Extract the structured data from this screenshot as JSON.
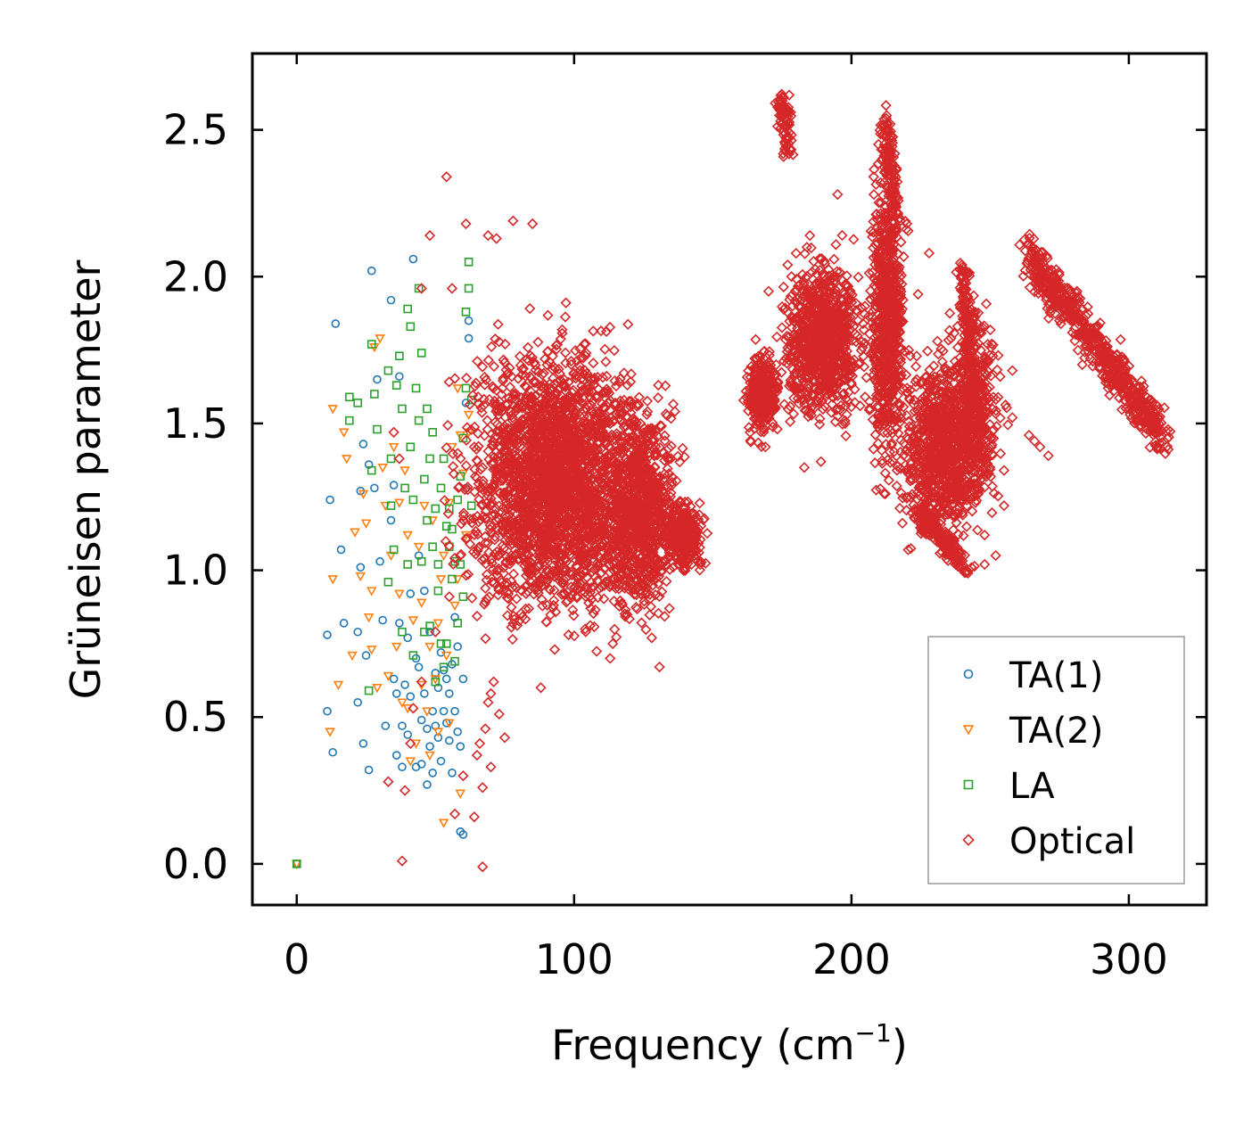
{
  "chart_data": {
    "type": "scatter",
    "title": "",
    "xlabel": "Frequency (cm",
    "xlabel_sup": "−1",
    "xlabel_close": ")",
    "ylabel": "Grüneisen parameter",
    "xlim": [
      -16,
      328
    ],
    "ylim": [
      -0.14,
      2.76
    ],
    "x_ticks": [
      0,
      100,
      200,
      300
    ],
    "x_tick_labels": [
      "0",
      "100",
      "200",
      "300"
    ],
    "y_ticks": [
      0.0,
      0.5,
      1.0,
      1.5,
      2.0,
      2.5
    ],
    "y_tick_labels": [
      "0.0",
      "0.5",
      "1.0",
      "1.5",
      "2.0",
      "2.5"
    ],
    "grid": false,
    "legend_position": "bottom-right",
    "series": [
      {
        "name": "TA(1)",
        "marker": "circle",
        "color": "#1f77b4",
        "points": [
          [
            0,
            0.0
          ],
          [
            11,
            0.78
          ],
          [
            11,
            0.52
          ],
          [
            12,
            1.24
          ],
          [
            13,
            0.38
          ],
          [
            14,
            1.84
          ],
          [
            16,
            1.07
          ],
          [
            17,
            0.82
          ],
          [
            22,
            0.55
          ],
          [
            22,
            0.79
          ],
          [
            23,
            1.27
          ],
          [
            23,
            1.01
          ],
          [
            24,
            0.41
          ],
          [
            24,
            1.43
          ],
          [
            25,
            0.71
          ],
          [
            26,
            1.36
          ],
          [
            26,
            0.32
          ],
          [
            27,
            2.02
          ],
          [
            28,
            1.28
          ],
          [
            29,
            1.65
          ],
          [
            30,
            1.03
          ],
          [
            31,
            0.83
          ],
          [
            32,
            0.47
          ],
          [
            34,
            1.92
          ],
          [
            34,
            1.17
          ],
          [
            35,
            0.63
          ],
          [
            35,
            1.29
          ],
          [
            36,
            0.37
          ],
          [
            36,
            0.58
          ],
          [
            37,
            1.66
          ],
          [
            37,
            0.82
          ],
          [
            38,
            0.47
          ],
          [
            38,
            0.33
          ],
          [
            39,
            0.61
          ],
          [
            40,
            0.44
          ],
          [
            40,
            0.77
          ],
          [
            41,
            0.92
          ],
          [
            41,
            0.57
          ],
          [
            42,
            2.06
          ],
          [
            43,
            0.7
          ],
          [
            43,
            0.33
          ],
          [
            44,
            0.67
          ],
          [
            44,
            1.05
          ],
          [
            45,
            0.49
          ],
          [
            45,
            0.34
          ],
          [
            46,
            0.58
          ],
          [
            46,
            0.93
          ],
          [
            47,
            0.46
          ],
          [
            47,
            0.27
          ],
          [
            48,
            0.79
          ],
          [
            48,
            0.4
          ],
          [
            49,
            0.52
          ],
          [
            49,
            0.31
          ],
          [
            50,
            0.65
          ],
          [
            50,
            0.47
          ],
          [
            51,
            0.6
          ],
          [
            51,
            0.43
          ],
          [
            52,
            0.72
          ],
          [
            52,
            0.35
          ],
          [
            53,
            0.66
          ],
          [
            53,
            0.52
          ],
          [
            54,
            0.63
          ],
          [
            54,
            0.48
          ],
          [
            55,
            0.58
          ],
          [
            55,
            0.42
          ],
          [
            56,
            0.68
          ],
          [
            56,
            0.31
          ],
          [
            57,
            0.84
          ],
          [
            57,
            0.52
          ],
          [
            58,
            0.45
          ],
          [
            58,
            0.74
          ],
          [
            59,
            0.4
          ],
          [
            59,
            0.11
          ],
          [
            60,
            0.1
          ],
          [
            60,
            0.63
          ],
          [
            61,
            1.57
          ],
          [
            61,
            1.28
          ],
          [
            62,
            1.85
          ],
          [
            62,
            1.79
          ]
        ]
      },
      {
        "name": "TA(2)",
        "marker": "triangle-down",
        "color": "#ff7f0e",
        "points": [
          [
            0,
            0.0
          ],
          [
            12,
            0.45
          ],
          [
            13,
            1.55
          ],
          [
            13,
            0.97
          ],
          [
            15,
            0.61
          ],
          [
            17,
            1.47
          ],
          [
            18,
            1.38
          ],
          [
            20,
            0.71
          ],
          [
            21,
            1.13
          ],
          [
            23,
            0.98
          ],
          [
            24,
            1.26
          ],
          [
            25,
            1.16
          ],
          [
            26,
            0.84
          ],
          [
            27,
            0.73
          ],
          [
            27,
            0.93
          ],
          [
            28,
            1.76
          ],
          [
            29,
            0.6
          ],
          [
            30,
            1.79
          ],
          [
            31,
            1.35
          ],
          [
            32,
            1.22
          ],
          [
            33,
            0.64
          ],
          [
            34,
            1.05
          ],
          [
            35,
            1.42
          ],
          [
            36,
            0.74
          ],
          [
            37,
            0.92
          ],
          [
            37,
            1.23
          ],
          [
            38,
            0.55
          ],
          [
            39,
            1.34
          ],
          [
            40,
            0.53
          ],
          [
            40,
            1.12
          ],
          [
            41,
            0.35
          ],
          [
            42,
            0.83
          ],
          [
            43,
            0.41
          ],
          [
            44,
            1.08
          ],
          [
            45,
            0.61
          ],
          [
            45,
            0.89
          ],
          [
            46,
            1.22
          ],
          [
            47,
            0.52
          ],
          [
            48,
            0.74
          ],
          [
            48,
            0.37
          ],
          [
            49,
            1.17
          ],
          [
            50,
            0.63
          ],
          [
            51,
            0.82
          ],
          [
            51,
            0.45
          ],
          [
            52,
            0.97
          ],
          [
            53,
            0.14
          ],
          [
            53,
            1.05
          ],
          [
            54,
            0.71
          ],
          [
            55,
            0.48
          ],
          [
            55,
            1.23
          ],
          [
            56,
            1.42
          ],
          [
            57,
            0.88
          ],
          [
            58,
            0.97
          ],
          [
            58,
            1.62
          ],
          [
            59,
            1.46
          ],
          [
            59,
            0.24
          ],
          [
            60,
            1.33
          ],
          [
            61,
            1.12
          ],
          [
            62,
            1.47
          ],
          [
            62,
            1.53
          ]
        ]
      },
      {
        "name": "LA",
        "marker": "square",
        "color": "#2ca02c",
        "points": [
          [
            0,
            0.0
          ],
          [
            19,
            1.59
          ],
          [
            19,
            1.51
          ],
          [
            22,
            1.57
          ],
          [
            26,
            0.59
          ],
          [
            27,
            1.34
          ],
          [
            27,
            1.77
          ],
          [
            28,
            1.6
          ],
          [
            29,
            1.48
          ],
          [
            33,
            0.96
          ],
          [
            33,
            1.68
          ],
          [
            34,
            1.38
          ],
          [
            34,
            1.22
          ],
          [
            35,
            1.07
          ],
          [
            36,
            1.63
          ],
          [
            37,
            1.73
          ],
          [
            38,
            0.79
          ],
          [
            38,
            1.55
          ],
          [
            39,
            1.28
          ],
          [
            40,
            1.89
          ],
          [
            40,
            1.02
          ],
          [
            41,
            1.42
          ],
          [
            41,
            1.83
          ],
          [
            42,
            0.71
          ],
          [
            42,
            1.24
          ],
          [
            43,
            1.62
          ],
          [
            44,
            1.96
          ],
          [
            44,
            1.51
          ],
          [
            45,
            1.74
          ],
          [
            45,
            1.03
          ],
          [
            46,
            0.79
          ],
          [
            46,
            1.31
          ],
          [
            47,
            1.17
          ],
          [
            47,
            1.55
          ],
          [
            48,
            0.81
          ],
          [
            48,
            1.38
          ],
          [
            49,
            1.08
          ],
          [
            49,
            1.47
          ],
          [
            50,
            0.62
          ],
          [
            50,
            1.21
          ],
          [
            51,
            0.93
          ],
          [
            51,
            1.02
          ],
          [
            52,
            0.75
          ],
          [
            52,
            1.28
          ],
          [
            53,
            0.67
          ],
          [
            53,
            1.38
          ],
          [
            54,
            1.15
          ],
          [
            54,
            0.75
          ],
          [
            55,
            1.21
          ],
          [
            55,
            1.08
          ],
          [
            56,
            0.97
          ],
          [
            56,
            1.14
          ],
          [
            57,
            0.69
          ],
          [
            57,
            1.03
          ],
          [
            58,
            1.24
          ],
          [
            58,
            0.82
          ],
          [
            59,
            1.02
          ],
          [
            59,
            1.32
          ],
          [
            60,
            0.91
          ],
          [
            60,
            1.45
          ],
          [
            61,
            1.62
          ],
          [
            61,
            1.88
          ],
          [
            62,
            1.96
          ],
          [
            62,
            2.05
          ],
          [
            63,
            1.58
          ],
          [
            63,
            1.22
          ]
        ]
      },
      {
        "name": "Optical",
        "marker": "diamond",
        "color": "#d62728",
        "clusters": [
          {
            "x_center": 95,
            "x_spread": 28,
            "y_center": 1.3,
            "y_spread": 0.38,
            "count": 2600
          },
          {
            "x_center": 125,
            "x_spread": 10,
            "y_center": 1.2,
            "y_spread": 0.28,
            "count": 650
          },
          {
            "x_center": 140,
            "x_spread": 6,
            "y_center": 1.12,
            "y_spread": 0.1,
            "count": 250
          },
          {
            "x_center": 168,
            "x_spread": 5,
            "y_center": 1.6,
            "y_spread": 0.12,
            "count": 300
          },
          {
            "x_center": 190,
            "x_spread": 12,
            "y_center": 1.78,
            "y_spread": 0.22,
            "count": 900
          },
          {
            "x_center": 213,
            "x_spread": 5,
            "y_center": 1.85,
            "y_spread": 0.4,
            "count": 700
          },
          {
            "x_center": 232,
            "x_spread": 12,
            "y_center": 1.42,
            "y_spread": 0.25,
            "count": 800
          },
          {
            "x_center": 244,
            "x_spread": 8,
            "y_center": 1.55,
            "y_spread": 0.3,
            "count": 450
          }
        ],
        "streaks": [
          {
            "x_from": 263,
            "y_from": 2.08,
            "x_to": 313,
            "y_to": 1.45,
            "width": 0.08,
            "count": 600
          },
          {
            "x_from": 175,
            "y_from": 2.62,
            "x_to": 177,
            "y_to": 2.42,
            "width": 0.02,
            "count": 80
          },
          {
            "x_from": 212,
            "y_from": 2.55,
            "x_to": 216,
            "y_to": 2.2,
            "width": 0.04,
            "count": 120
          },
          {
            "x_from": 240,
            "y_from": 2.02,
            "x_to": 245,
            "y_to": 1.55,
            "width": 0.04,
            "count": 150
          },
          {
            "x_from": 224,
            "y_from": 1.2,
            "x_to": 242,
            "y_to": 1.0,
            "width": 0.04,
            "count": 150
          }
        ],
        "points": [
          [
            38,
            0.01
          ],
          [
            67,
            -0.01
          ],
          [
            54,
            2.34
          ],
          [
            48,
            2.14
          ],
          [
            69,
            2.14
          ],
          [
            78,
            2.19
          ],
          [
            85,
            2.18
          ],
          [
            61,
            2.18
          ],
          [
            72,
            2.13
          ],
          [
            56,
            1.96
          ],
          [
            45,
            1.96
          ],
          [
            35,
            1.47
          ],
          [
            37,
            1.38
          ],
          [
            33,
            0.28
          ],
          [
            39,
            0.25
          ],
          [
            41,
            0.41
          ],
          [
            42,
            0.53
          ],
          [
            45,
            0.62
          ],
          [
            50,
            0.79
          ],
          [
            55,
            0.91
          ],
          [
            57,
            0.17
          ],
          [
            60,
            0.3
          ],
          [
            65,
            0.37
          ],
          [
            68,
            0.46
          ],
          [
            70,
            0.58
          ],
          [
            71,
            0.62
          ],
          [
            64,
            0.16
          ],
          [
            67,
            0.26
          ],
          [
            70,
            0.33
          ],
          [
            73,
            0.51
          ],
          [
            75,
            0.43
          ],
          [
            66,
            0.41
          ],
          [
            69,
            0.55
          ],
          [
            88,
            0.6
          ],
          [
            93,
            0.73
          ],
          [
            98,
            0.78
          ],
          [
            104,
            0.8
          ],
          [
            113,
            0.7
          ],
          [
            128,
            0.77
          ],
          [
            145,
            1.06
          ],
          [
            162,
            1.61
          ],
          [
            169,
            1.42
          ],
          [
            183,
            1.35
          ],
          [
            189,
            1.37
          ],
          [
            181,
            1.72
          ],
          [
            177,
            2.04
          ],
          [
            185,
            2.14
          ],
          [
            195,
            2.28
          ],
          [
            208,
            2.34
          ],
          [
            220,
            2.18
          ],
          [
            228,
            2.08
          ],
          [
            224,
            1.94
          ],
          [
            231,
            1.78
          ],
          [
            240,
            1.7
          ],
          [
            251,
            1.73
          ],
          [
            258,
            1.68
          ],
          [
            255,
            1.34
          ],
          [
            250,
            1.35
          ],
          [
            248,
            1.02
          ],
          [
            252,
            1.05
          ],
          [
            242,
            0.99
          ],
          [
            258,
            1.52
          ],
          [
            264,
            1.46
          ],
          [
            266,
            1.44
          ],
          [
            268,
            1.42
          ],
          [
            271,
            1.39
          ],
          [
            255,
            1.22
          ],
          [
            248,
            1.12
          ],
          [
            237,
            1.1
          ],
          [
            230,
            1.25
          ]
        ]
      }
    ]
  }
}
